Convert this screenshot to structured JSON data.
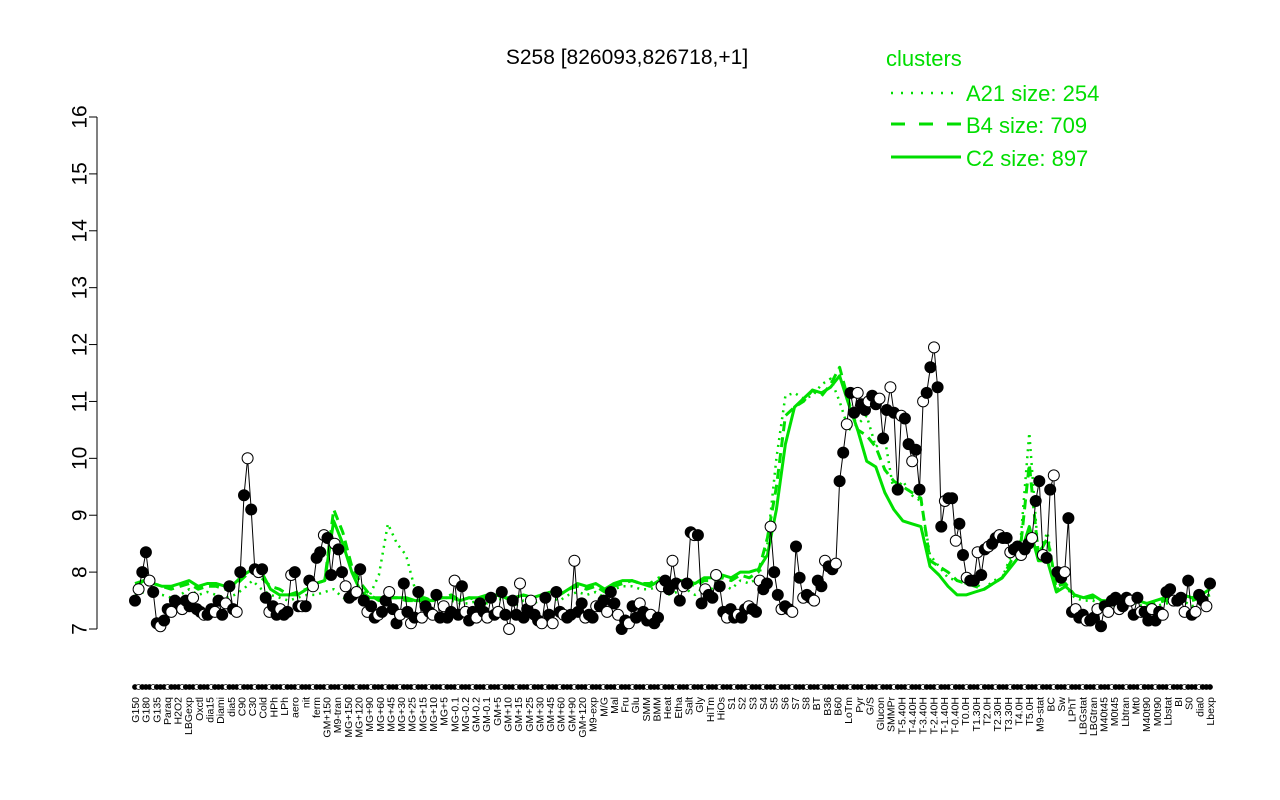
{
  "chart_data": {
    "type": "line",
    "title": "S258 [826093,826718,+1]",
    "xlabel": "",
    "ylabel": "",
    "ylim": [
      7,
      16
    ],
    "yticks": [
      7,
      8,
      9,
      10,
      11,
      12,
      13,
      14,
      15,
      16
    ],
    "grid": false,
    "legend": {
      "title": "clusters",
      "placement": "top-right",
      "entries": [
        {
          "label": "A21 size: 254",
          "style": "dotted"
        },
        {
          "label": "B4 size: 709",
          "style": "dashed"
        },
        {
          "label": "C2 size: 897",
          "style": "solid"
        }
      ]
    },
    "x_tick_labels": [
      "G150",
      "G180",
      "G135",
      "Paraq",
      "H2O2",
      "LBGexp",
      "Oxctl",
      "dia15",
      "Diami",
      "dia5",
      "C90",
      "C30",
      "Cold",
      "HPh",
      "LPh",
      "aero",
      "nit",
      "ferm",
      "GM+150",
      "M9-tran",
      "MG+150",
      "MG+120",
      "MG+90",
      "MG+60",
      "MG+45",
      "MG+30",
      "MG+25",
      "MG+15",
      "MG+10",
      "MG+5",
      "MG-0.1",
      "MG-0.2",
      "GM-0.2",
      "GM-0.1",
      "GM+5",
      "GM+10",
      "GM+15",
      "GM+25",
      "GM+30",
      "GM+45",
      "GM+60",
      "GM+90",
      "GM+120",
      "M9-exp",
      "M/G",
      "Mal",
      "Fru",
      "Glu",
      "SMM",
      "BMM",
      "Heat",
      "Etha",
      "Salt",
      "Gly",
      "HiTm",
      "HiOs",
      "S1",
      "S2",
      "S3",
      "S4",
      "S5",
      "S6",
      "S7",
      "S8",
      "BT",
      "B36",
      "B60",
      "LoTm",
      "Pyr",
      "G/S",
      "Glucon",
      "SMMPr",
      "T-5.40H",
      "T-4.40H",
      "T-3.40H",
      "T-2.40H",
      "T-1.40H",
      "T-0.40H",
      "T0.0H",
      "T1.30H",
      "T2.0H",
      "T2.30H",
      "T3.30H",
      "T4.0H",
      "T5.0H",
      "M9-stat",
      "BC",
      "Sw",
      "LPhT",
      "LBGstat",
      "LBGtran",
      "M40t45",
      "M0t45",
      "Lbtran",
      "Mt0",
      "M40t90",
      "M0t90",
      "Lbstat",
      "BI",
      "S0",
      "dia0",
      "Lbexp"
    ],
    "series": [
      {
        "name": "S258",
        "x_positions_note": "",
        "values": [
          7.5,
          7.7,
          8.0,
          8.35,
          7.85,
          7.65,
          7.1,
          7.05,
          7.15,
          7.35,
          7.3,
          7.5,
          7.45,
          7.35,
          7.5,
          7.4,
          7.55,
          7.35,
          7.3,
          7.25,
          7.25,
          7.35,
          7.3,
          7.5,
          7.25,
          7.45,
          7.75,
          7.35,
          7.3,
          8.0,
          9.35,
          10.0,
          9.1,
          8.05,
          8.0,
          8.05,
          7.55,
          7.3,
          7.4,
          7.25,
          7.35,
          7.25,
          7.3,
          7.95,
          8.0,
          7.4,
          7.4,
          7.4,
          7.85,
          7.75,
          8.25,
          8.35,
          8.65,
          8.6,
          7.95,
          8.5,
          8.4,
          8.0,
          7.75,
          7.55,
          7.6,
          7.65,
          8.05,
          7.5,
          7.3,
          7.4,
          7.2,
          7.25,
          7.3,
          7.5,
          7.65,
          7.35,
          7.1,
          7.25,
          7.8,
          7.3,
          7.1,
          7.2,
          7.65,
          7.2,
          7.4,
          7.3,
          7.25,
          7.6,
          7.2,
          7.4,
          7.2,
          7.3,
          7.85,
          7.25,
          7.75,
          7.3,
          7.15,
          7.3,
          7.2,
          7.45,
          7.3,
          7.2,
          7.55,
          7.25,
          7.3,
          7.65,
          7.25,
          7.0,
          7.5,
          7.25,
          7.8,
          7.2,
          7.35,
          7.5,
          7.25,
          7.15,
          7.1,
          7.55,
          7.25,
          7.1,
          7.65,
          7.3,
          7.25,
          7.2,
          7.25,
          8.2,
          7.3,
          7.45,
          7.2,
          7.25,
          7.2,
          7.4,
          7.4,
          7.5,
          7.3,
          7.65,
          7.45,
          7.25,
          7.0,
          7.15,
          7.1,
          7.4,
          7.2,
          7.45,
          7.3,
          7.15,
          7.25,
          7.1,
          7.2,
          7.75,
          7.85,
          7.7,
          8.2,
          7.8,
          7.5,
          7.75,
          7.8,
          8.7,
          8.65,
          8.65,
          7.45,
          7.7,
          7.6,
          7.55,
          7.95,
          7.75,
          7.3,
          7.2,
          7.35,
          7.2,
          7.25,
          7.2,
          7.35,
          7.4,
          7.35,
          7.3,
          7.85,
          7.7,
          7.8,
          8.8,
          8.0,
          7.6,
          7.35,
          7.4,
          7.35,
          7.3,
          8.45,
          7.9,
          7.55,
          7.6,
          7.55,
          7.5,
          7.85,
          7.75,
          8.2,
          8.1,
          8.05,
          8.15,
          9.6,
          10.1,
          10.6,
          11.15,
          10.8,
          11.15,
          10.95,
          10.85,
          11.0,
          11.1,
          10.95,
          11.05,
          10.35,
          10.85,
          11.25,
          10.8,
          9.45,
          10.75,
          10.7,
          10.25,
          9.95,
          10.15,
          9.45,
          11.0,
          11.15,
          11.6,
          11.95,
          11.25,
          8.8,
          9.25,
          9.3,
          9.3,
          8.55,
          8.85,
          8.3,
          7.9,
          7.85,
          7.85,
          8.35,
          7.95,
          8.4,
          8.45,
          8.5,
          8.6,
          8.65,
          8.6,
          8.6,
          8.35,
          8.4,
          8.45,
          8.3,
          8.4,
          8.5,
          8.6,
          9.25,
          9.6,
          8.3,
          8.25,
          9.45,
          9.7,
          8.0,
          7.9,
          8.0,
          8.95,
          7.3,
          7.35,
          7.2,
          7.25,
          7.15,
          7.15,
          7.2,
          7.35,
          7.05,
          7.4,
          7.3,
          7.5,
          7.55,
          7.35,
          7.4,
          7.55,
          7.5,
          7.25,
          7.55,
          7.3,
          7.3,
          7.15,
          7.35,
          7.15,
          7.3,
          7.25,
          7.65,
          7.7,
          7.5,
          7.5,
          7.55,
          7.3,
          7.85,
          7.25,
          7.3,
          7.6,
          7.5,
          7.4,
          7.8
        ]
      }
    ],
    "clusters": [
      {
        "name": "A21",
        "values": [
          7.6,
          7.65,
          7.6,
          7.6,
          7.55,
          7.6,
          7.7,
          7.6,
          7.65,
          7.6,
          7.55,
          7.6,
          7.7,
          7.85,
          7.7,
          7.6,
          7.55,
          7.5,
          7.55,
          7.6,
          7.6,
          7.65,
          7.7,
          7.55,
          7.5,
          7.7,
          7.6,
          7.95,
          8.85,
          8.5,
          8.3,
          7.7,
          7.55,
          7.5,
          7.6,
          7.5,
          7.45,
          7.45,
          7.5,
          7.45,
          7.5,
          7.55,
          7.4,
          7.5,
          7.45,
          7.5,
          7.55,
          7.5,
          7.6,
          7.65,
          7.6,
          7.65,
          7.55,
          7.7,
          7.75,
          7.75,
          7.7,
          7.7,
          7.75,
          7.6,
          7.65,
          7.7,
          7.6,
          7.75,
          7.7,
          7.8,
          7.7,
          7.85,
          7.8,
          7.9,
          8.5,
          10.0,
          11.1,
          11.15,
          11.05,
          11.1,
          11.3,
          11.4,
          11.0,
          10.5,
          10.6,
          10.75,
          10.2,
          10.35,
          9.4,
          9.6,
          9.35,
          9.25,
          8.3,
          8.1,
          7.9,
          7.85,
          7.8,
          7.8,
          7.7,
          7.85,
          7.9,
          8.3,
          8.5,
          10.45,
          8.3,
          8.7,
          7.7,
          7.75,
          7.55,
          7.5,
          7.5,
          7.45,
          7.4,
          7.45,
          7.45,
          7.45,
          7.35,
          7.4,
          7.45,
          7.45,
          7.5,
          7.4,
          7.45,
          7.5
        ]
      },
      {
        "name": "B4",
        "values": [
          7.75,
          7.85,
          7.8,
          7.75,
          7.7,
          7.75,
          7.8,
          7.7,
          7.75,
          7.75,
          7.7,
          7.75,
          7.9,
          8.05,
          7.9,
          7.75,
          7.7,
          7.6,
          7.65,
          7.7,
          7.8,
          7.85,
          9.1,
          8.7,
          8.1,
          7.8,
          7.6,
          7.5,
          7.55,
          7.55,
          7.5,
          7.5,
          7.55,
          7.5,
          7.55,
          7.6,
          7.5,
          7.55,
          7.5,
          7.55,
          7.6,
          7.55,
          7.55,
          7.6,
          7.55,
          7.6,
          7.65,
          7.6,
          7.7,
          7.75,
          7.7,
          7.75,
          7.65,
          7.75,
          7.8,
          7.85,
          7.8,
          7.8,
          7.9,
          7.75,
          7.8,
          7.85,
          7.75,
          7.85,
          7.85,
          7.9,
          7.85,
          7.95,
          7.9,
          8.0,
          8.6,
          9.5,
          10.75,
          10.9,
          11.0,
          11.2,
          11.1,
          11.3,
          11.6,
          11.0,
          10.5,
          10.4,
          10.2,
          9.8,
          9.6,
          9.5,
          9.4,
          9.3,
          8.2,
          8.1,
          8.0,
          7.85,
          7.8,
          7.75,
          7.7,
          7.8,
          7.9,
          8.2,
          8.4,
          9.9,
          8.3,
          8.6,
          7.75,
          7.8,
          7.6,
          7.55,
          7.55,
          7.5,
          7.45,
          7.5,
          7.5,
          7.5,
          7.4,
          7.45,
          7.5,
          7.5,
          7.55,
          7.5,
          7.55,
          7.6
        ]
      },
      {
        "name": "C2",
        "values": [
          7.8,
          7.85,
          7.8,
          7.75,
          7.75,
          7.8,
          7.85,
          7.75,
          7.8,
          7.8,
          7.75,
          7.8,
          7.95,
          8.05,
          8.0,
          7.7,
          7.6,
          7.6,
          7.6,
          7.7,
          7.8,
          7.85,
          8.9,
          8.5,
          8.0,
          7.65,
          7.55,
          7.55,
          7.55,
          7.55,
          7.55,
          7.5,
          7.5,
          7.5,
          7.55,
          7.55,
          7.5,
          7.55,
          7.55,
          7.6,
          7.6,
          7.55,
          7.55,
          7.6,
          7.55,
          7.6,
          7.65,
          7.6,
          7.7,
          7.8,
          7.75,
          7.8,
          7.7,
          7.8,
          7.85,
          7.85,
          7.8,
          7.75,
          7.85,
          7.8,
          7.85,
          7.85,
          7.8,
          7.9,
          7.9,
          7.95,
          7.9,
          8.0,
          8.0,
          8.05,
          8.3,
          9.1,
          10.25,
          10.9,
          11.05,
          11.2,
          11.15,
          11.25,
          11.45,
          10.95,
          10.5,
          9.95,
          9.85,
          9.4,
          9.1,
          8.9,
          8.85,
          8.8,
          8.1,
          7.95,
          7.75,
          7.6,
          7.6,
          7.65,
          7.7,
          7.8,
          7.9,
          8.1,
          8.3,
          8.8,
          8.2,
          8.2,
          7.65,
          7.75,
          7.6,
          7.55,
          7.6,
          7.5,
          7.5,
          7.5,
          7.5,
          7.5,
          7.45,
          7.5,
          7.55,
          7.55,
          7.6,
          7.55,
          7.6,
          7.7
        ]
      }
    ],
    "color_cluster_lines": "#00e000",
    "color_points_filled": "#000000",
    "color_points_open": "#ffffff"
  }
}
